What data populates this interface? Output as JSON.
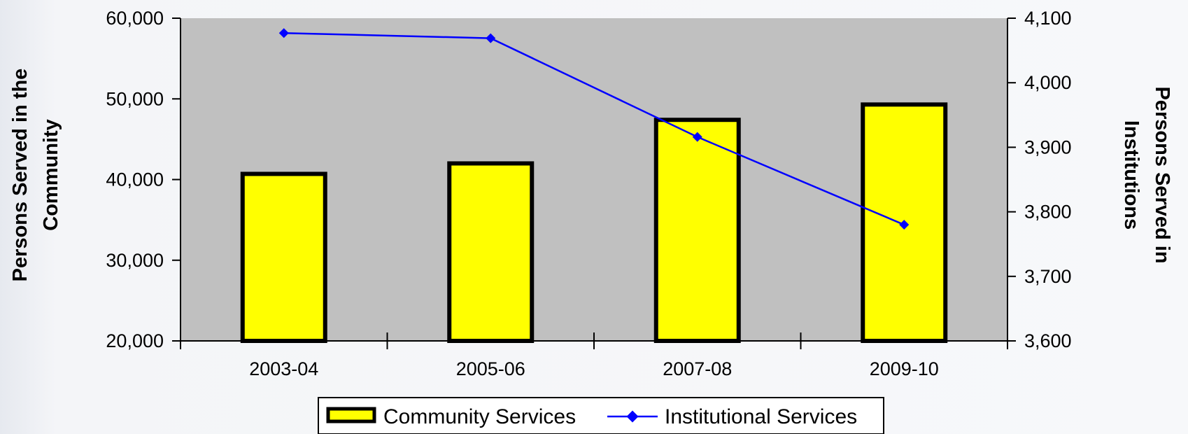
{
  "chart_data": {
    "type": "bar",
    "categories": [
      "2003-04",
      "2005-06",
      "2007-08",
      "2009-10"
    ],
    "series": [
      {
        "name": "Community Services",
        "type": "bar",
        "axis": "left",
        "values": [
          40700,
          42000,
          47400,
          49300
        ],
        "color": "#ffff00",
        "border_color": "#000000"
      },
      {
        "name": "Institutional Services",
        "type": "line",
        "axis": "right",
        "values": [
          4077,
          4069,
          3916,
          3780
        ],
        "color": "#0000ff"
      }
    ],
    "ylabel": "Persons Served in the Community",
    "y2label": "Persons Served in Institutions",
    "ylim": [
      20000,
      60000
    ],
    "y2lim": [
      3600,
      4100
    ],
    "yticks": [
      "20,000",
      "30,000",
      "40,000",
      "50,000",
      "60,000"
    ],
    "y2ticks": [
      "3,600",
      "3,700",
      "3,800",
      "3,900",
      "4,000",
      "4,100"
    ],
    "plot_background": "#c0c0c0",
    "grid": false,
    "legend_position": "bottom"
  }
}
